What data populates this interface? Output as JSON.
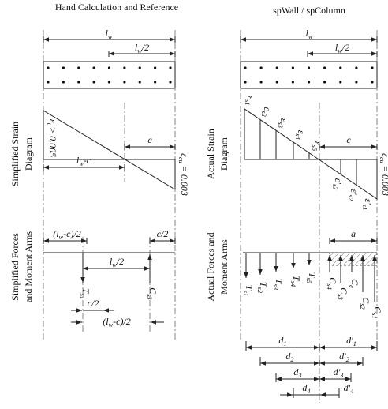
{
  "left": {
    "title": "Hand Calculation and Reference",
    "strain_title": [
      "Simplified Strain",
      "Diagram"
    ],
    "forces_title": [
      "Simplified Forces",
      "and Moment Arms"
    ],
    "lw": {
      "t": "l",
      "s": "w"
    },
    "lw_half": {
      "t": "l",
      "s": "w",
      "a": "/2"
    },
    "eps_t": {
      "t": "ε",
      "s": "t",
      "a": " > 0.005"
    },
    "eps_cu": {
      "t": "ε",
      "s": "cu",
      "a": " = 0.003"
    },
    "c": {
      "t": "c"
    },
    "lw_minus_c": {
      "t": "l",
      "s": "w",
      "a": "-c"
    },
    "lwc_half": {
      "t": "(l",
      "s": "w",
      "a": "-c)/2"
    },
    "c_half": {
      "t": "c/2"
    },
    "lw_half_2": {
      "t": "l",
      "s": "w",
      "a": "/2"
    },
    "ts1": {
      "t": "T",
      "s": "s1"
    },
    "cs3": {
      "t": "C",
      "s": "s3"
    },
    "c_half_2": {
      "t": "c/2"
    },
    "lwc_half_2": {
      "t": "(l",
      "s": "w",
      "a": "-c)/2"
    }
  },
  "right": {
    "title": "spWall / spColumn",
    "strain_title": [
      "Actual Strain",
      "Diagram"
    ],
    "forces_title": [
      "Actual Forces and",
      "Moment Arms"
    ],
    "lw": {
      "t": "l",
      "s": "w"
    },
    "lw_half": {
      "t": "l",
      "s": "w",
      "a": "/2"
    },
    "eps_cu": {
      "t": "ε",
      "s": "cu",
      "a": " = 0.003"
    },
    "c": {
      "t": "c"
    },
    "strains": [
      {
        "t": "ε",
        "s": "s1"
      },
      {
        "t": "ε",
        "s": "s2"
      },
      {
        "t": "ε",
        "s": "s3"
      },
      {
        "t": "ε",
        "s": "s4"
      },
      {
        "t": "ε",
        "s": "s5"
      }
    ],
    "strains_prime": [
      {
        "t": "ε'",
        "s": "s3"
      },
      {
        "t": "ε'",
        "s": "s2"
      },
      {
        "t": "ε'",
        "s": "s1"
      }
    ],
    "a": {
      "t": "a"
    },
    "tension": [
      {
        "t": "T",
        "s": "s1"
      },
      {
        "t": "T",
        "s": "s2"
      },
      {
        "t": "T",
        "s": "s3"
      },
      {
        "t": "T",
        "s": "s4"
      },
      {
        "t": "T",
        "s": "s5"
      }
    ],
    "compression": [
      {
        "t": "C",
        "s": "s4"
      },
      {
        "t": "C",
        "s": "s3"
      },
      {
        "t": "C",
        "s": "c"
      },
      {
        "t": "C",
        "s": "s2"
      },
      {
        "t": "C",
        "s": "s1"
      }
    ],
    "arms": [
      {
        "t": "d",
        "s": "1"
      },
      {
        "t": "d",
        "s": "2"
      },
      {
        "t": "d",
        "s": "3"
      },
      {
        "t": "d",
        "s": "4"
      }
    ],
    "arms_prime": [
      {
        "t": "d'",
        "s": "1"
      },
      {
        "t": "d'",
        "s": "2"
      },
      {
        "t": "d'",
        "s": "3"
      },
      {
        "t": "d'",
        "s": "4"
      }
    ]
  }
}
